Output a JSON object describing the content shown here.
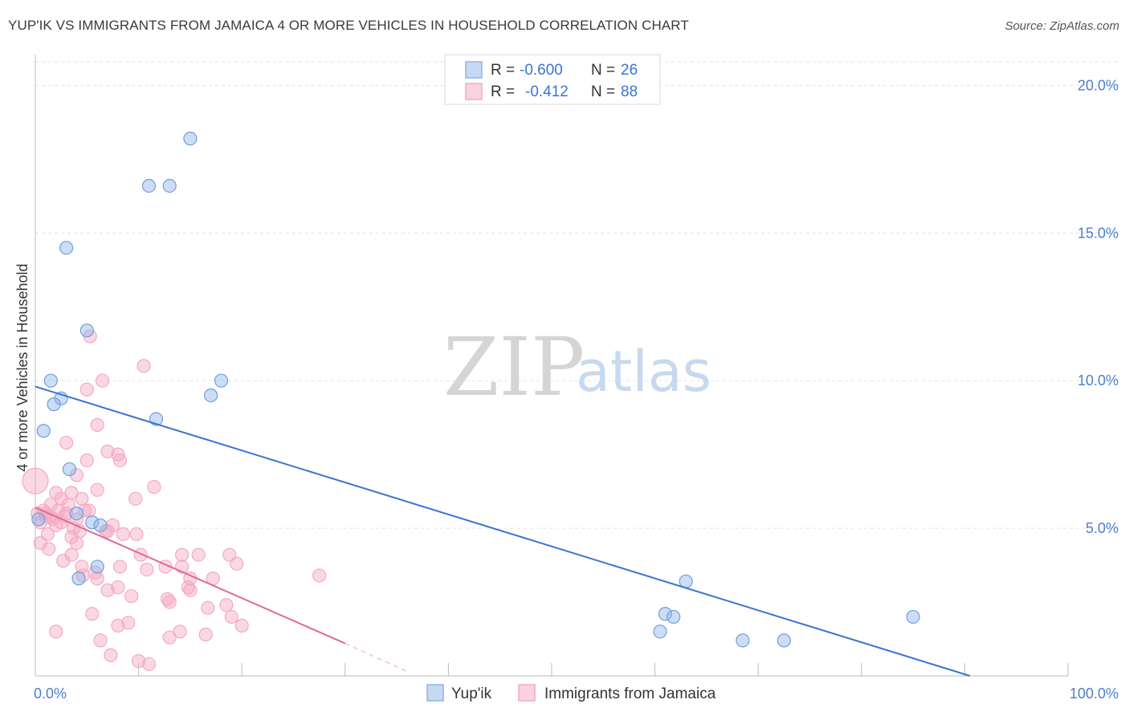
{
  "title": "YUP'IK VS IMMIGRANTS FROM JAMAICA 4 OR MORE VEHICLES IN HOUSEHOLD CORRELATION CHART",
  "source": "Source: ZipAtlas.com",
  "watermark": {
    "zip": "ZIP",
    "atlas": "atlas"
  },
  "colors": {
    "series_blue": "#8fb4e8",
    "series_blue_line": "#3b74d1",
    "series_pink": "#f4a9c0",
    "series_pink_line": "#e06a94",
    "tick_label": "#4a7fcf"
  },
  "chart_data": {
    "type": "scatter",
    "ylabel": "4 or more Vehicles in Household",
    "xlabel": "",
    "x_tick_labels": [
      "0.0%",
      "100.0%"
    ],
    "y_tick_labels": [
      "5.0%",
      "10.0%",
      "15.0%",
      "20.0%"
    ],
    "xlim": [
      0,
      100
    ],
    "ylim": [
      0,
      20.8
    ],
    "x_ticks": [
      0,
      10,
      20,
      30,
      40,
      50,
      60,
      70,
      80,
      90,
      100
    ],
    "y_ticks": [
      5,
      10,
      15,
      20
    ],
    "grid": true,
    "legend_position": "top-center",
    "legend": [
      {
        "r_label": "R =",
        "r_value": "-0.600",
        "n_label": "N =",
        "n_value": "26"
      },
      {
        "r_label": "R =",
        "r_value": "-0.412",
        "n_label": "N =",
        "n_value": "88"
      }
    ],
    "series": [
      {
        "name": "Yup'ik",
        "color": "#8fb4e8",
        "trend": {
          "x0": 0,
          "y0": 9.8,
          "x1": 90.5,
          "y1": 0
        },
        "points": [
          [
            15.0,
            18.2
          ],
          [
            11.0,
            16.6
          ],
          [
            13.0,
            16.6
          ],
          [
            3.0,
            14.5
          ],
          [
            5.0,
            11.7
          ],
          [
            1.5,
            10.0
          ],
          [
            2.5,
            9.4
          ],
          [
            1.8,
            9.2
          ],
          [
            18.0,
            10.0
          ],
          [
            17.0,
            9.5
          ],
          [
            11.7,
            8.7
          ],
          [
            0.8,
            8.3
          ],
          [
            3.3,
            7.0
          ],
          [
            4.0,
            5.5
          ],
          [
            0.3,
            5.3
          ],
          [
            5.5,
            5.2
          ],
          [
            6.3,
            5.1
          ],
          [
            6.0,
            3.7
          ],
          [
            4.2,
            3.3
          ],
          [
            63.0,
            3.2
          ],
          [
            61.0,
            2.1
          ],
          [
            61.8,
            2.0
          ],
          [
            85.0,
            2.0
          ],
          [
            60.5,
            1.5
          ],
          [
            68.5,
            1.2
          ],
          [
            72.5,
            1.2
          ]
        ]
      },
      {
        "name": "Immigrants from Jamaica",
        "color": "#f4a9c0",
        "trend": {
          "x0": 0,
          "y0": 5.7,
          "x1": 30,
          "y1": 1.1,
          "dash_x1": 36,
          "dash_y1": 0.15
        },
        "points": [
          [
            0.0,
            6.6
          ],
          [
            5.3,
            11.5
          ],
          [
            10.5,
            10.5
          ],
          [
            6.5,
            10.0
          ],
          [
            5.0,
            9.7
          ],
          [
            6.0,
            8.5
          ],
          [
            3.0,
            7.9
          ],
          [
            7.0,
            7.6
          ],
          [
            8.0,
            7.5
          ],
          [
            8.2,
            7.3
          ],
          [
            5.0,
            7.3
          ],
          [
            4.0,
            6.8
          ],
          [
            11.5,
            6.4
          ],
          [
            6.0,
            6.3
          ],
          [
            2.0,
            6.2
          ],
          [
            3.5,
            6.2
          ],
          [
            2.5,
            6.0
          ],
          [
            4.5,
            6.0
          ],
          [
            9.7,
            6.0
          ],
          [
            1.5,
            5.8
          ],
          [
            0.8,
            5.6
          ],
          [
            2.2,
            5.6
          ],
          [
            3.0,
            5.5
          ],
          [
            4.8,
            5.6
          ],
          [
            1.0,
            5.4
          ],
          [
            1.7,
            5.3
          ],
          [
            2.8,
            5.4
          ],
          [
            4.0,
            5.3
          ],
          [
            0.5,
            5.2
          ],
          [
            2.0,
            5.1
          ],
          [
            3.7,
            5.0
          ],
          [
            7.5,
            5.1
          ],
          [
            7.0,
            4.9
          ],
          [
            8.5,
            4.8
          ],
          [
            1.2,
            4.8
          ],
          [
            3.5,
            4.7
          ],
          [
            0.5,
            4.5
          ],
          [
            1.3,
            4.3
          ],
          [
            4.0,
            4.5
          ],
          [
            10.2,
            4.1
          ],
          [
            3.5,
            4.1
          ],
          [
            14.2,
            4.1
          ],
          [
            15.8,
            4.1
          ],
          [
            18.8,
            4.1
          ],
          [
            2.7,
            3.9
          ],
          [
            8.2,
            3.7
          ],
          [
            10.8,
            3.6
          ],
          [
            14.2,
            3.7
          ],
          [
            19.5,
            3.8
          ],
          [
            4.5,
            3.7
          ],
          [
            5.8,
            3.5
          ],
          [
            6.0,
            3.3
          ],
          [
            15.0,
            3.3
          ],
          [
            17.2,
            3.3
          ],
          [
            27.5,
            3.4
          ],
          [
            4.6,
            3.4
          ],
          [
            8.0,
            3.0
          ],
          [
            14.8,
            3.0
          ],
          [
            15.0,
            2.9
          ],
          [
            7.0,
            2.9
          ],
          [
            9.3,
            2.7
          ],
          [
            12.8,
            2.6
          ],
          [
            13.0,
            2.5
          ],
          [
            18.5,
            2.4
          ],
          [
            16.7,
            2.3
          ],
          [
            5.5,
            2.1
          ],
          [
            19.0,
            2.0
          ],
          [
            9.0,
            1.8
          ],
          [
            8.0,
            1.7
          ],
          [
            20.0,
            1.7
          ],
          [
            13.0,
            1.3
          ],
          [
            14.0,
            1.5
          ],
          [
            16.5,
            1.4
          ],
          [
            2.0,
            1.5
          ],
          [
            6.3,
            1.2
          ],
          [
            7.3,
            0.7
          ],
          [
            10.0,
            0.5
          ],
          [
            11.0,
            0.4
          ],
          [
            1.0,
            5.5
          ],
          [
            3.2,
            5.8
          ],
          [
            2.5,
            5.2
          ],
          [
            0.2,
            5.5
          ],
          [
            5.2,
            5.6
          ],
          [
            4.3,
            4.9
          ],
          [
            6.8,
            4.9
          ],
          [
            12.6,
            3.7
          ],
          [
            9.8,
            4.8
          ],
          [
            1.5,
            5.4
          ]
        ]
      }
    ]
  }
}
